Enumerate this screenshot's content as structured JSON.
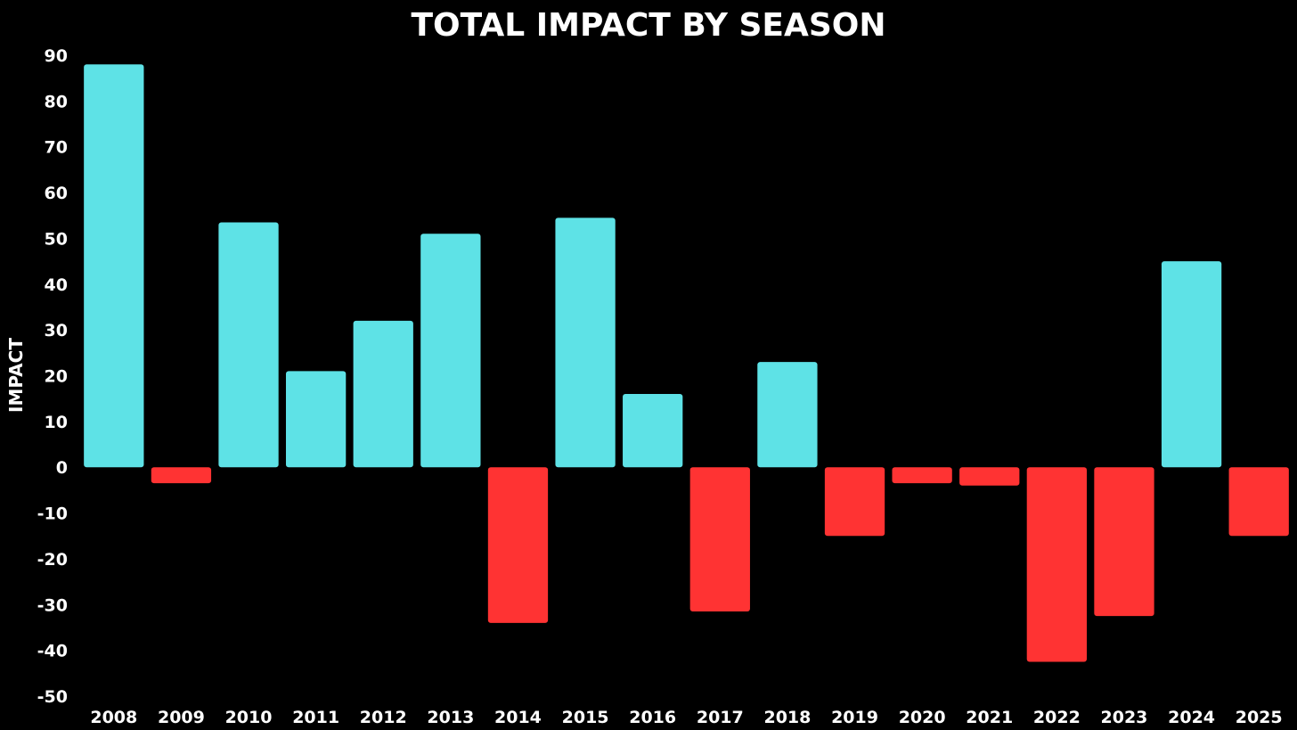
{
  "chart_data": {
    "type": "bar",
    "title": "TOTAL IMPACT BY SEASON",
    "xlabel": "",
    "ylabel": "IMPACT",
    "ylim": [
      -50,
      90
    ],
    "yticks": [
      90,
      80,
      70,
      60,
      50,
      40,
      30,
      20,
      10,
      0,
      -10,
      -20,
      -30,
      -40,
      -50
    ],
    "grid": false,
    "legend": "none",
    "categories": [
      "2008",
      "2009",
      "2010",
      "2011",
      "2012",
      "2013",
      "2014",
      "2015",
      "2016",
      "2017",
      "2018",
      "2019",
      "2020",
      "2021",
      "2022",
      "2023",
      "2024",
      "2025"
    ],
    "values": [
      88,
      -3.5,
      53.5,
      21,
      32,
      51,
      -34,
      54.5,
      16,
      -31.5,
      23,
      -15,
      -3.5,
      -4,
      -42.5,
      -32.5,
      45,
      -15
    ],
    "colors": {
      "positive": "#5ee2e6",
      "negative": "#ff3333",
      "background": "#000000",
      "text": "#ffffff"
    }
  }
}
